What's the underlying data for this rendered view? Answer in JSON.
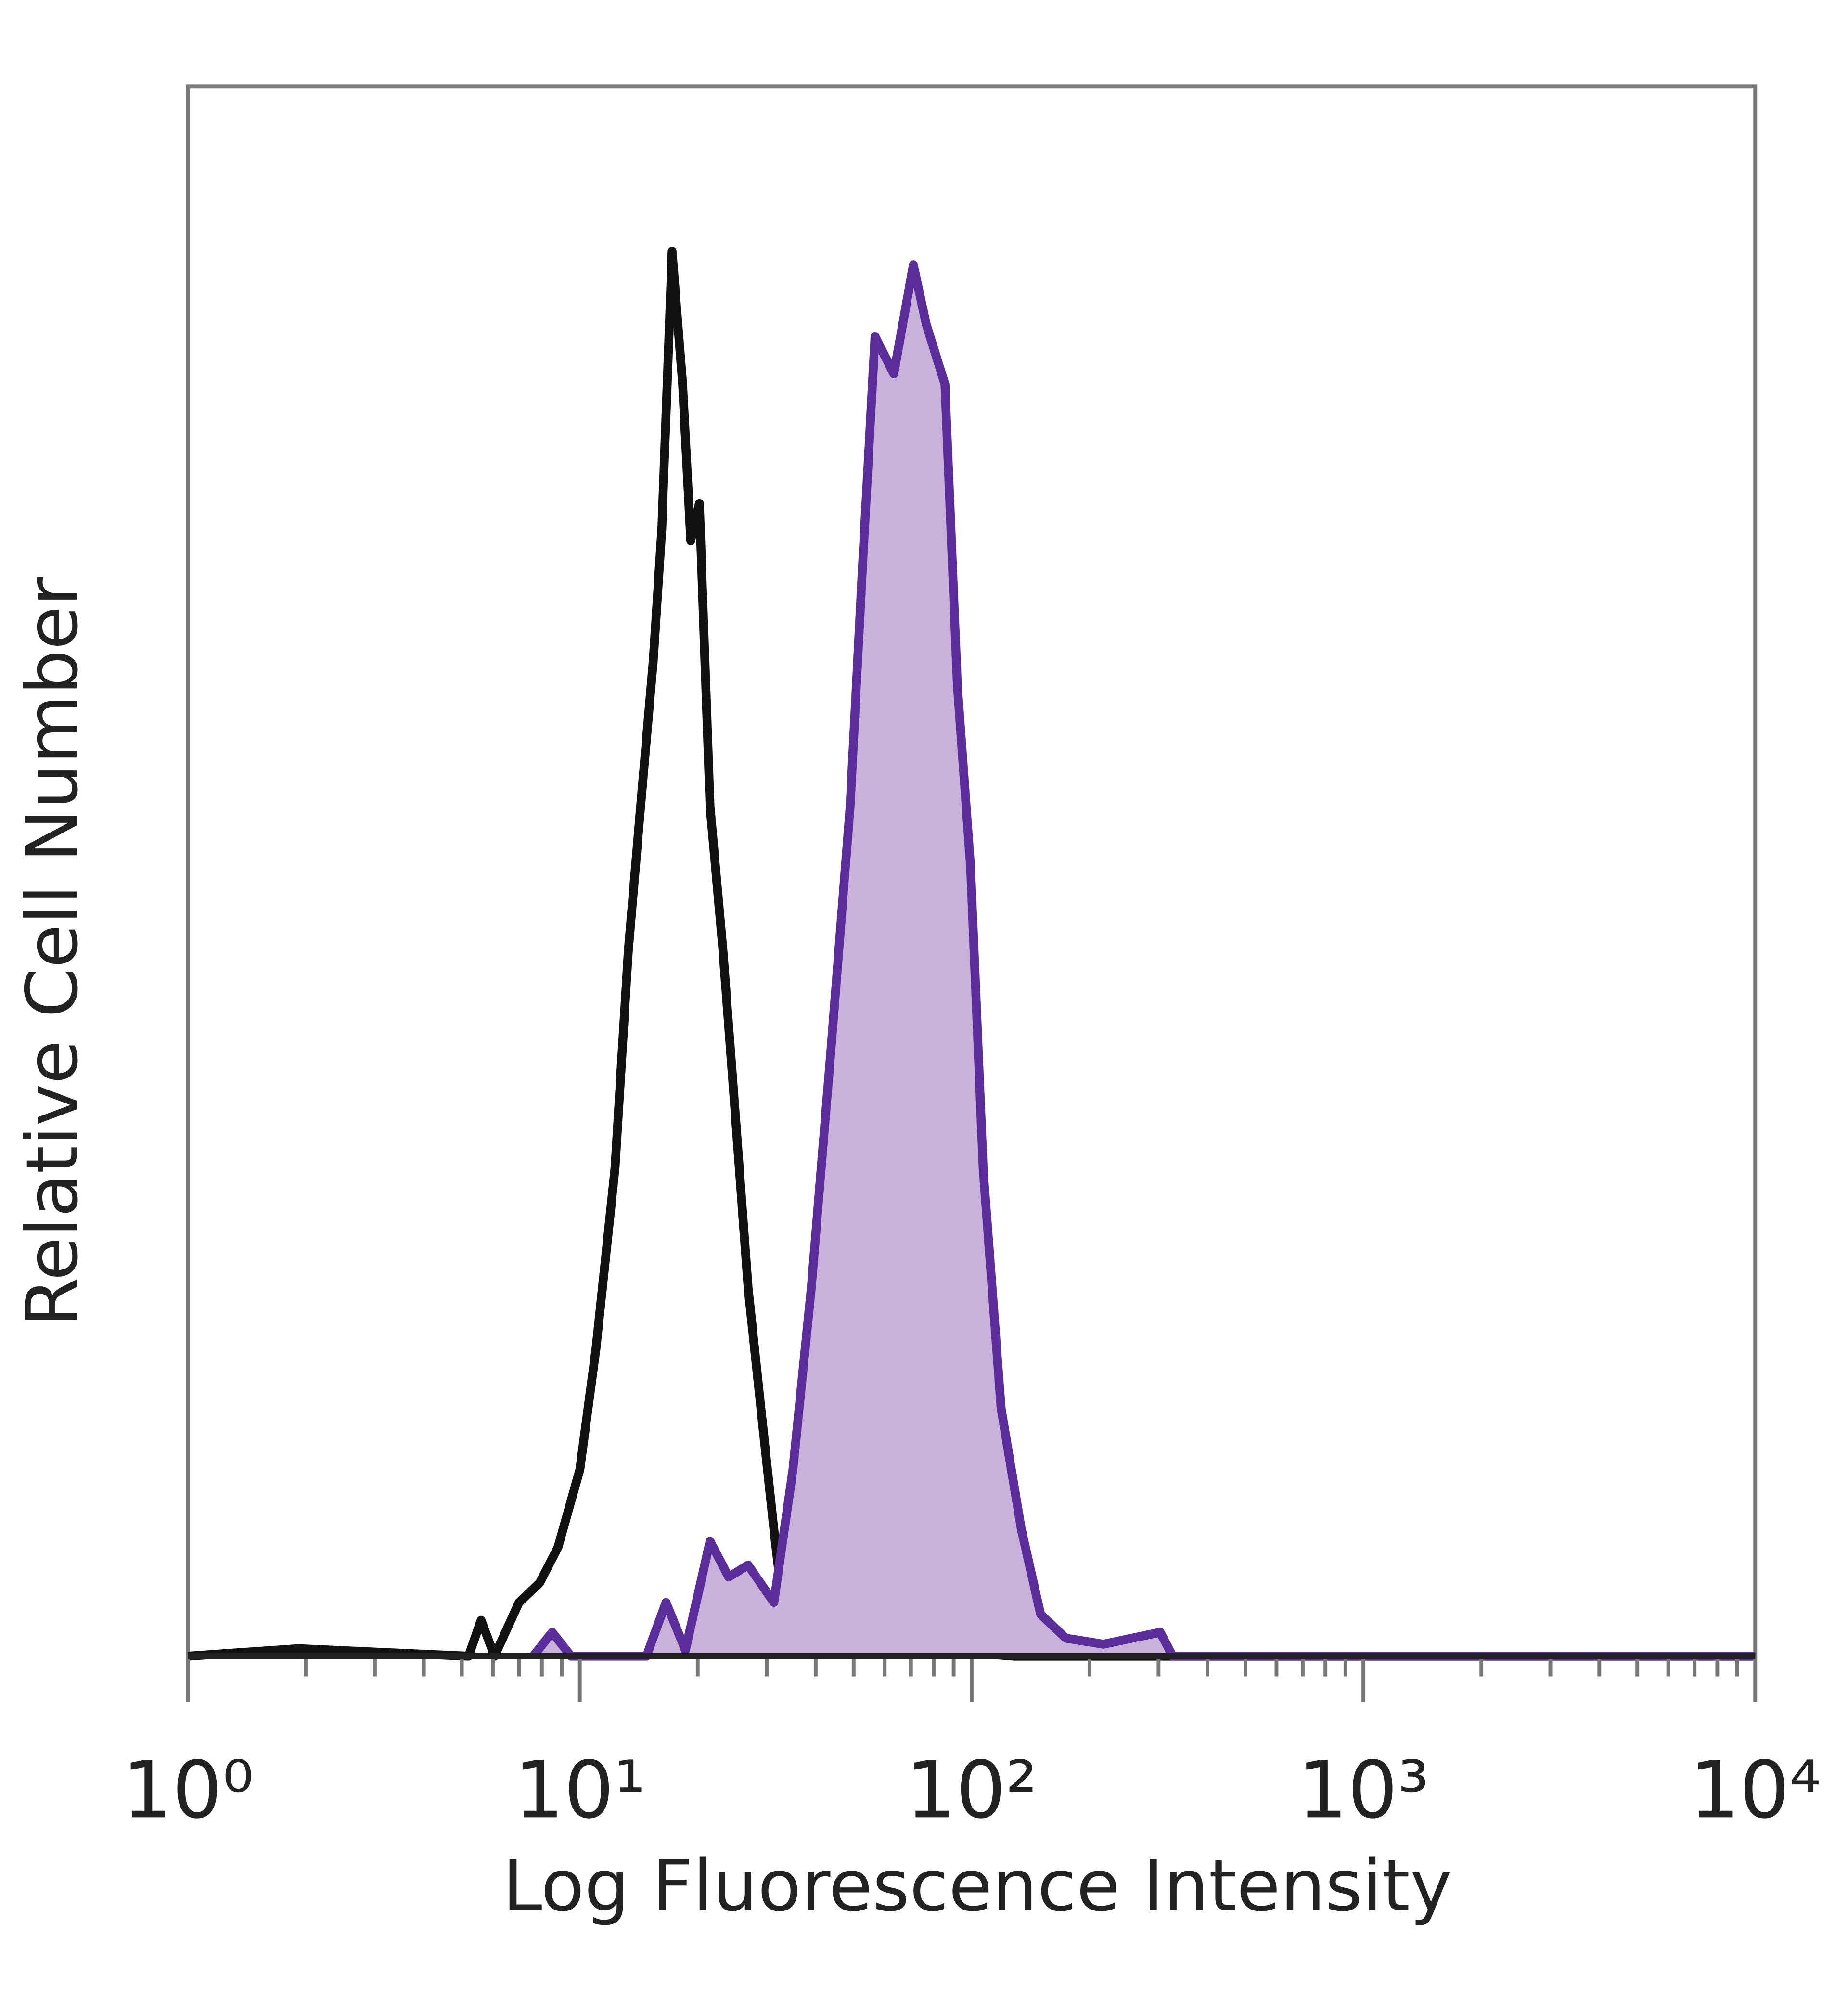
{
  "chart_data": {
    "type": "histogram-line",
    "xlabel": "Log Fluorescence Intensity",
    "ylabel": "Relative Cell Number",
    "xscale": "log",
    "xlim": [
      1,
      10000
    ],
    "ylim": [
      0,
      100
    ],
    "xticks": [
      {
        "value": 1,
        "label": "10⁰"
      },
      {
        "value": 10,
        "label": "10¹"
      },
      {
        "value": 100,
        "label": "10²"
      },
      {
        "value": 1000,
        "label": "10³"
      },
      {
        "value": 10000,
        "label": "10⁴"
      }
    ],
    "xticks_minor": [
      2,
      3,
      4,
      5,
      6,
      7,
      8,
      9,
      20,
      30,
      40,
      50,
      60,
      70,
      80,
      90,
      200,
      300,
      400,
      500,
      600,
      700,
      800,
      900,
      2000,
      3000,
      4000,
      5000,
      6000,
      7000,
      8000,
      9000
    ],
    "series": [
      {
        "color": "#111111",
        "fill": "none",
        "x": [
          1,
          1.91,
          5.2,
          5.6,
          6.06,
          7.0,
          7.9,
          8.8,
          10,
          11.0,
          12.3,
          13.3,
          14.3,
          15.4,
          16.2,
          17.2,
          18.3,
          19.2,
          20.2,
          21.5,
          23.2,
          25.0,
          26.9,
          29.0,
          31.3,
          33.7,
          39,
          56.7,
          82,
          128,
          10000
        ],
        "values": [
          0,
          0.5,
          0,
          2.4,
          0,
          3.6,
          4.9,
          7.3,
          12.5,
          20.6,
          32.7,
          47.3,
          57,
          66.7,
          75.6,
          94.2,
          85.3,
          74.8,
          77.3,
          57,
          47.3,
          36,
          24.7,
          16.6,
          8.5,
          1.2,
          0.4,
          0.4,
          0.4,
          0,
          0
        ]
      },
      {
        "color": "#5b2d9a",
        "fill": "#c9b2da",
        "x": [
          7.6,
          8.5,
          9.5,
          14.8,
          16.6,
          18.6,
          21.5,
          24,
          26.9,
          31.3,
          35,
          39,
          43.8,
          49,
          52.7,
          56.7,
          63.3,
          71,
          76.6,
          85.5,
          92,
          99.4,
          107,
          119,
          134,
          150,
          174,
          217,
          303,
          326,
          10000
        ],
        "values": [
          0,
          1.6,
          0,
          0,
          3.6,
          0.4,
          7.7,
          5.3,
          6.1,
          3.6,
          12.5,
          24.7,
          40.8,
          57,
          73.2,
          88.5,
          86,
          93.3,
          89.3,
          85.3,
          65.1,
          52.9,
          32.7,
          16.6,
          8.5,
          2.8,
          1.2,
          0.8,
          1.6,
          0,
          0
        ]
      }
    ]
  }
}
